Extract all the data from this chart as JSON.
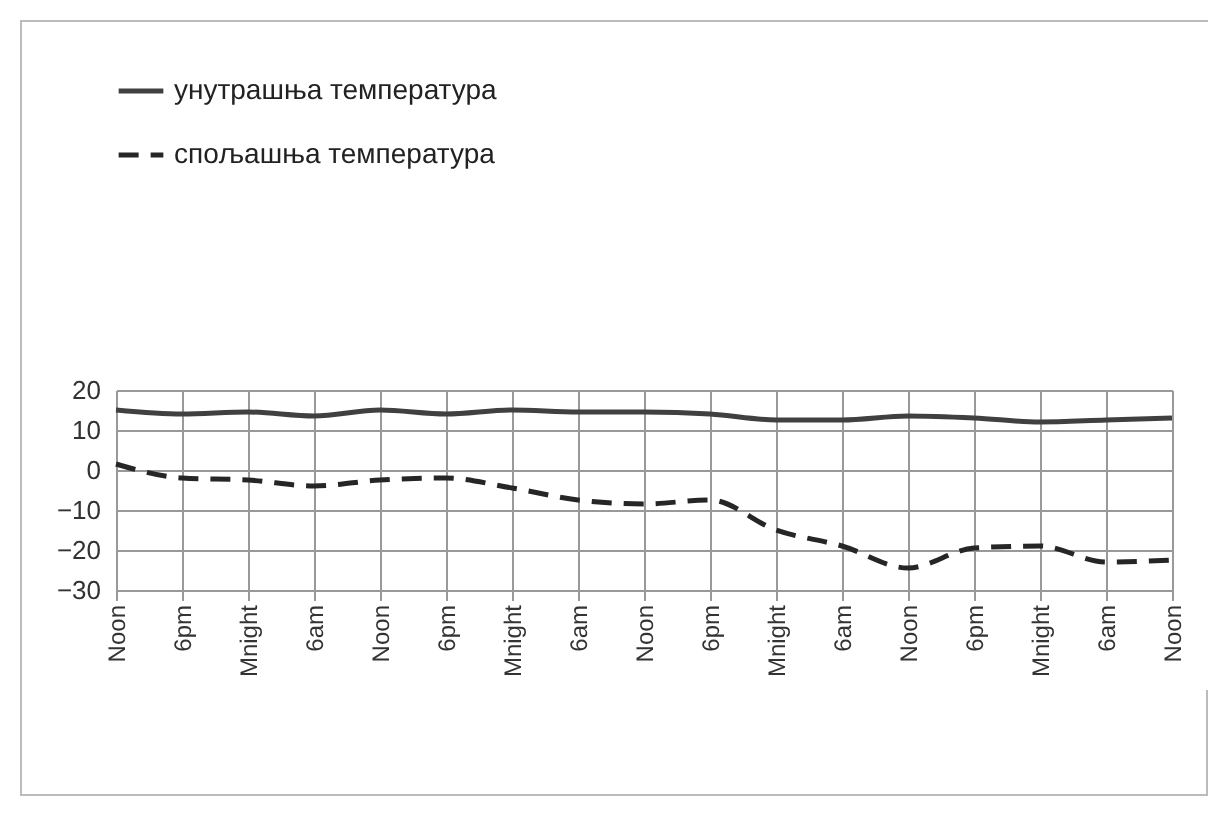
{
  "chart_data": {
    "type": "line",
    "categories": [
      "Noon",
      "6pm",
      "Mnight",
      "6am",
      "Noon",
      "6pm",
      "Mnight",
      "6am",
      "Noon",
      "6pm",
      "Mnight",
      "6am",
      "Noon",
      "6pm",
      "Mnight",
      "6am",
      "Noon"
    ],
    "series": [
      {
        "name": "унутрашња температура",
        "color": "#404040",
        "line_style": "solid",
        "values": [
          15,
          14,
          14.5,
          13.5,
          15,
          14,
          15,
          14.5,
          14.5,
          14,
          12.5,
          12.5,
          13.5,
          13,
          12,
          12.5,
          13
        ]
      },
      {
        "name": "спољашња температура",
        "color": "#262626",
        "line_style": "dashed",
        "values": [
          1.5,
          -2,
          -2.5,
          -4,
          -2.5,
          -2,
          -4.5,
          -7.5,
          -8.5,
          -7.5,
          -15,
          -19,
          -24.5,
          -19.5,
          -19,
          -23,
          -22.5
        ]
      }
    ],
    "ylim": [
      -30,
      20
    ],
    "yticks": [
      -30,
      -20,
      -10,
      0,
      10,
      20
    ],
    "grid": true,
    "legend": "top",
    "marker": "none"
  }
}
